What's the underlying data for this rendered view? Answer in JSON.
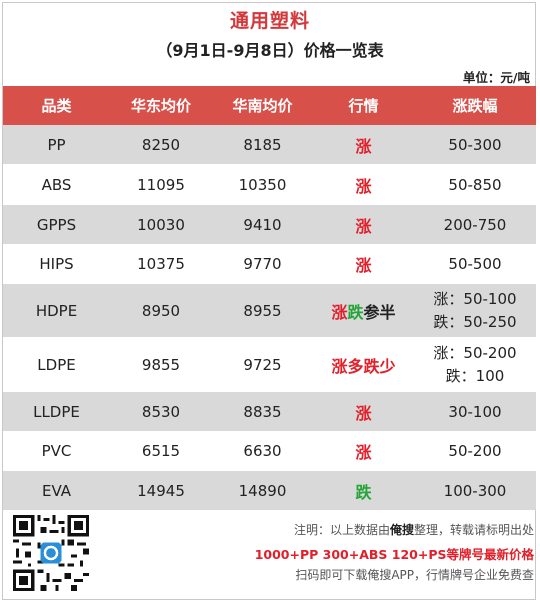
{
  "title": "通用塑料",
  "subtitle": "（9月1日-9月8日）价格一览表",
  "unit": "单位：元/吨",
  "headers": [
    "品类",
    "华东均价",
    "华南均价",
    "行情",
    "涨跌幅"
  ],
  "rows": [
    {
      "name": "PP",
      "east": "8250",
      "south": "8185",
      "trend": "涨",
      "range": "50-300"
    },
    {
      "name": "ABS",
      "east": "11095",
      "south": "10350",
      "trend": "涨",
      "range": "50-850"
    },
    {
      "name": "GPPS",
      "east": "10030",
      "south": "9410",
      "trend": "涨",
      "range": "200-750"
    },
    {
      "name": "HIPS",
      "east": "10375",
      "south": "9770",
      "trend": "涨",
      "range": "50-500"
    },
    {
      "name": "HDPE",
      "east": "8950",
      "south": "8955",
      "trend_a": "涨",
      "trend_b": "跌",
      "trend_c": "参半",
      "range1": "涨：50-100",
      "range2": "跌：50-250"
    },
    {
      "name": "LDPE",
      "east": "9855",
      "south": "9725",
      "trend": "涨多跌少",
      "range1": "涨：50-200",
      "range2": "跌：100"
    },
    {
      "name": "LLDPE",
      "east": "8530",
      "south": "8835",
      "trend": "涨",
      "range": "30-100"
    },
    {
      "name": "PVC",
      "east": "6515",
      "south": "6630",
      "trend": "涨",
      "range": "50-200"
    },
    {
      "name": "EVA",
      "east": "14945",
      "south": "14890",
      "trend": "跌",
      "range": "100-300"
    }
  ],
  "footer": {
    "note_a": "注明：以上数据由",
    "note_brand": "俺搜",
    "note_b": "整理，转载请标明出处",
    "promo": "1000+PP  300+ABS  120+PS等牌号最新价格",
    "scan": "扫码即可下载俺搜APP，行情牌号企业免费查"
  },
  "colors": {
    "header_bg": "#d8504a",
    "rise": "#e2202a",
    "fall": "#23a537",
    "title": "#d3393c"
  }
}
